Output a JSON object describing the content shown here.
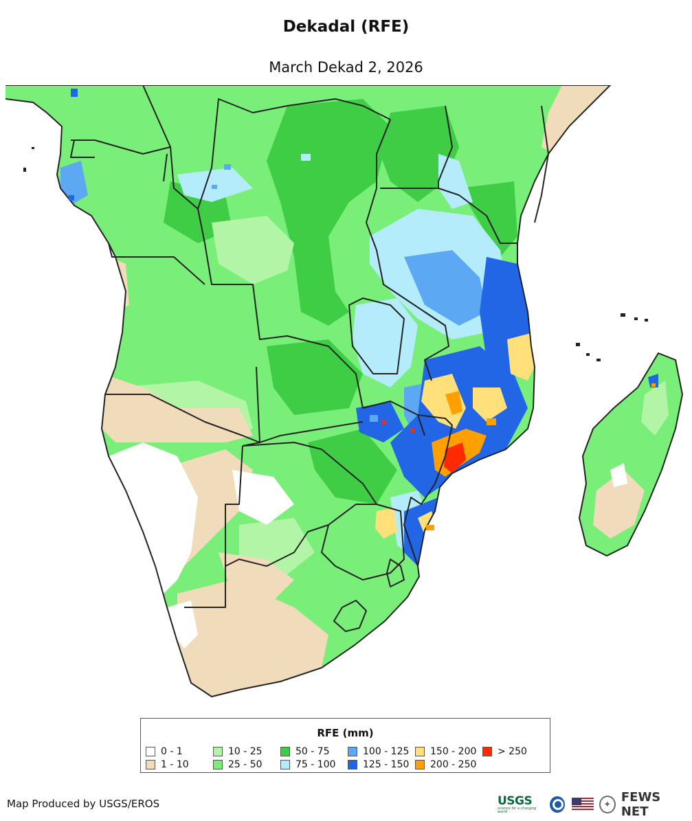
{
  "title": "Dekadal (RFE)",
  "subtitle": "March Dekad 2, 2026",
  "legend": {
    "title": "RFE (mm)",
    "items": [
      {
        "label": "0 - 1",
        "color": "#ffffff"
      },
      {
        "label": "1 - 10",
        "color": "#f0dcba"
      },
      {
        "label": "10 - 25",
        "color": "#b3f5a6"
      },
      {
        "label": "25 - 50",
        "color": "#79ee78"
      },
      {
        "label": "50 - 75",
        "color": "#3fcd45"
      },
      {
        "label": "75 - 100",
        "color": "#b4ecfb"
      },
      {
        "label": "100 - 125",
        "color": "#5ca8f2"
      },
      {
        "label": "125 - 150",
        "color": "#2266e6"
      },
      {
        "label": "150 - 200",
        "color": "#ffe07a"
      },
      {
        "label": "200 - 250",
        "color": "#ff9f00"
      },
      {
        "label": "> 250",
        "color": "#ff2a00"
      }
    ]
  },
  "credit": "Map Produced by USGS/EROS",
  "logos": {
    "usgs": "USGS",
    "usgs_tagline": "science for a changing world",
    "fews": "FEWS NET",
    "icons": [
      "usgs-logo-icon",
      "noaa-logo-icon",
      "us-flag-icon",
      "state-department-seal-icon"
    ]
  }
}
